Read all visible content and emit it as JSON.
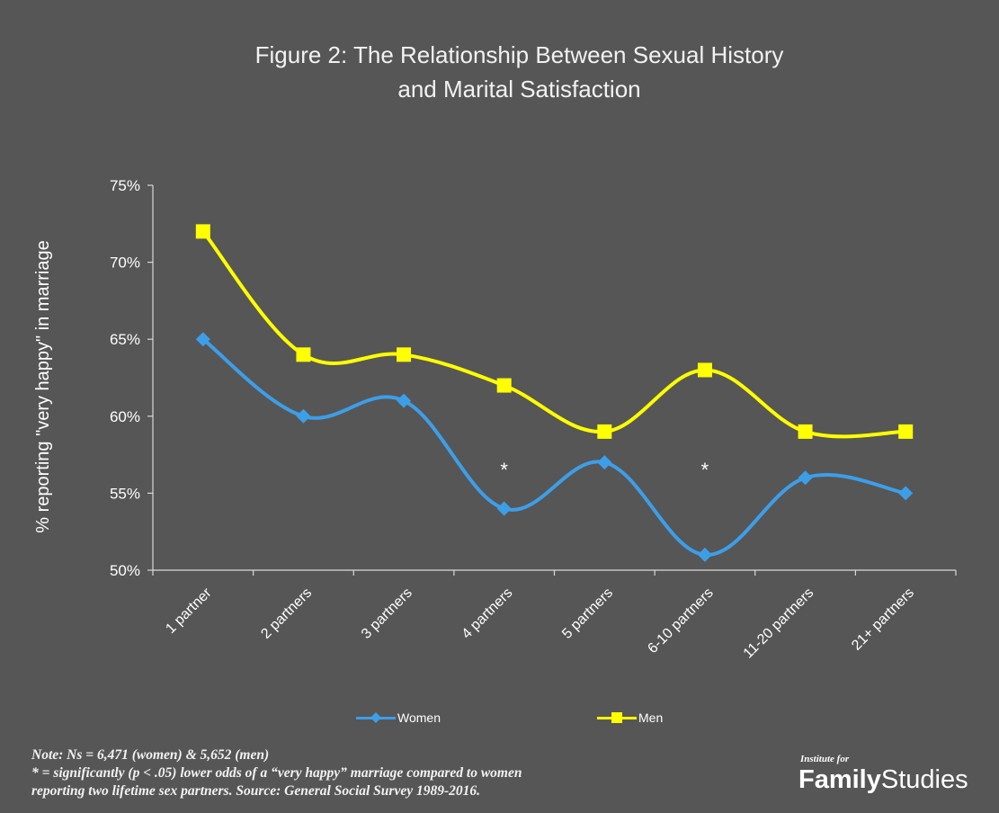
{
  "chart_data": {
    "type": "line",
    "title": "Figure  2: The Relationship Between Sexual History",
    "subtitle": "and Marital Satisfaction",
    "xlabel": "",
    "ylabel": "% reporting \"very happy\" in marriage",
    "categories": [
      "1 partner",
      "2 partners",
      "3 partners",
      "4 partners",
      "5 partners",
      "6-10 partners",
      "11-20 partners",
      "21+ partners"
    ],
    "yticks": [
      "50%",
      "55%",
      "60%",
      "65%",
      "70%",
      "75%"
    ],
    "ylim": [
      50,
      75
    ],
    "grid": false,
    "legend_position": "bottom",
    "series": [
      {
        "name": "Women",
        "values": [
          65,
          60,
          61,
          54,
          57,
          51,
          56,
          55
        ],
        "color": "#3d9ee8",
        "marker": "diamond"
      },
      {
        "name": "Men",
        "values": [
          72,
          64,
          64,
          62,
          59,
          63,
          59,
          59
        ],
        "color": "#ffff00",
        "marker": "square"
      }
    ],
    "annotations": [
      {
        "text": "*",
        "category": "4 partners"
      },
      {
        "text": "*",
        "category": "6-10 partners"
      }
    ]
  },
  "notes": {
    "line1": "Note: Ns = 6,471 (women) & 5,652 (men)",
    "line2": "* = significantly (p < .05) lower odds of a “very happy” marriage compared to women",
    "line3": "reporting two lifetime sex partners.  Source: General Social Survey 1989-2016."
  },
  "logo": {
    "small": "Institute for",
    "main_bold": "Family",
    "main_regular": "Studies"
  },
  "colors": {
    "background": "#565656",
    "axis": "#d9d9d9",
    "text": "#ffffff"
  }
}
